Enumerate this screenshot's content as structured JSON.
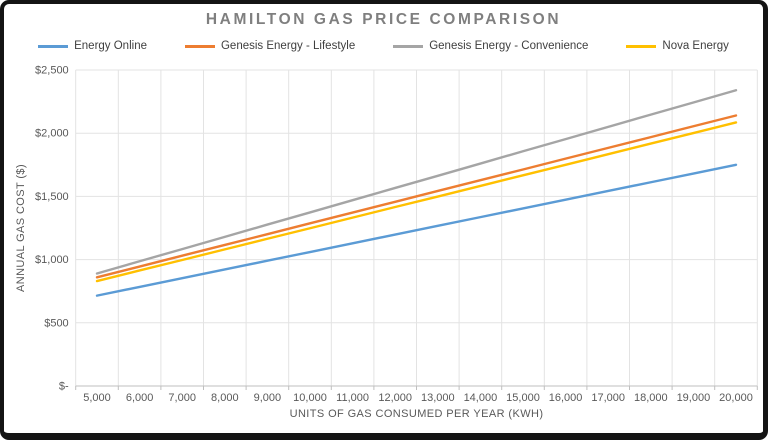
{
  "title": "HAMILTON GAS PRICE COMPARISON",
  "colors": {
    "title_text": "#7F7F7F",
    "axis_text": "#595959",
    "legend_text": "#3F3F3F",
    "gridline": "#E3E3E3",
    "axis_line": "#BFBFBF",
    "frame_border": "#141414",
    "background": "#FFFFFF"
  },
  "chart_data": {
    "type": "line",
    "title": "HAMILTON GAS PRICE COMPARISON",
    "xlabel": "UNITS OF GAS CONSUMED PER YEAR (KWH)",
    "ylabel": "ANNUAL GAS COST ($)",
    "x_categories": [
      "5,000",
      "6,000",
      "7,000",
      "8,000",
      "9,000",
      "10,000",
      "11,000",
      "12,000",
      "13,000",
      "14,000",
      "15,000",
      "16,000",
      "17,000",
      "18,000",
      "19,000",
      "20,000"
    ],
    "x_values": [
      5000,
      6000,
      7000,
      8000,
      9000,
      10000,
      11000,
      12000,
      13000,
      14000,
      15000,
      16000,
      17000,
      18000,
      19000,
      20000
    ],
    "ylim": [
      0,
      2500
    ],
    "y_ticks": [
      {
        "label": "$2,500",
        "value": 2500
      },
      {
        "label": "$2,000",
        "value": 2000
      },
      {
        "label": "$1,500",
        "value": 1500
      },
      {
        "label": "$1,000",
        "value": 1000
      },
      {
        "label": "$500",
        "value": 500
      },
      {
        "label": "$-",
        "value": 0
      }
    ],
    "grid": true,
    "legend_position": "top",
    "series": [
      {
        "name": "Energy Online",
        "color": "#5B9BD5",
        "values": [
          715,
          784,
          853,
          922,
          991,
          1060,
          1129,
          1198,
          1267,
          1336,
          1405,
          1474,
          1543,
          1612,
          1681,
          1750
        ]
      },
      {
        "name": "Genesis Energy - Lifestyle",
        "color": "#ED7D31",
        "values": [
          860,
          945,
          1031,
          1116,
          1201,
          1287,
          1372,
          1457,
          1543,
          1628,
          1713,
          1799,
          1884,
          1969,
          2055,
          2140
        ]
      },
      {
        "name": "Genesis Energy - Convenience",
        "color": "#A5A5A5",
        "values": [
          890,
          987,
          1083,
          1180,
          1277,
          1373,
          1470,
          1567,
          1663,
          1760,
          1857,
          1953,
          2050,
          2147,
          2243,
          2340
        ]
      },
      {
        "name": "Nova Energy",
        "color": "#FFC000",
        "values": [
          830,
          914,
          997,
          1081,
          1165,
          1248,
          1332,
          1416,
          1499,
          1583,
          1667,
          1750,
          1834,
          1918,
          2001,
          2085
        ]
      }
    ]
  }
}
